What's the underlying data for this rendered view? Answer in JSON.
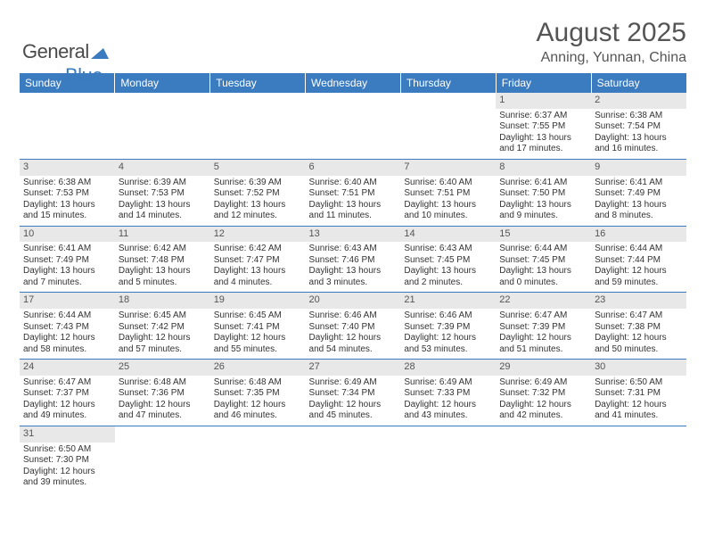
{
  "logo": {
    "text1": "General",
    "text2": "Blue"
  },
  "header": {
    "title": "August 2025",
    "subtitle": "Anning, Yunnan, China"
  },
  "colors": {
    "header_bg": "#3b7bbf",
    "daynum_bg": "#e8e8e8",
    "border": "#3b7bbf"
  },
  "weekdays": [
    "Sunday",
    "Monday",
    "Tuesday",
    "Wednesday",
    "Thursday",
    "Friday",
    "Saturday"
  ],
  "weeks": [
    [
      {
        "n": "",
        "sr": "",
        "ss": "",
        "dl": ""
      },
      {
        "n": "",
        "sr": "",
        "ss": "",
        "dl": ""
      },
      {
        "n": "",
        "sr": "",
        "ss": "",
        "dl": ""
      },
      {
        "n": "",
        "sr": "",
        "ss": "",
        "dl": ""
      },
      {
        "n": "",
        "sr": "",
        "ss": "",
        "dl": ""
      },
      {
        "n": "1",
        "sr": "Sunrise: 6:37 AM",
        "ss": "Sunset: 7:55 PM",
        "dl": "Daylight: 13 hours and 17 minutes."
      },
      {
        "n": "2",
        "sr": "Sunrise: 6:38 AM",
        "ss": "Sunset: 7:54 PM",
        "dl": "Daylight: 13 hours and 16 minutes."
      }
    ],
    [
      {
        "n": "3",
        "sr": "Sunrise: 6:38 AM",
        "ss": "Sunset: 7:53 PM",
        "dl": "Daylight: 13 hours and 15 minutes."
      },
      {
        "n": "4",
        "sr": "Sunrise: 6:39 AM",
        "ss": "Sunset: 7:53 PM",
        "dl": "Daylight: 13 hours and 14 minutes."
      },
      {
        "n": "5",
        "sr": "Sunrise: 6:39 AM",
        "ss": "Sunset: 7:52 PM",
        "dl": "Daylight: 13 hours and 12 minutes."
      },
      {
        "n": "6",
        "sr": "Sunrise: 6:40 AM",
        "ss": "Sunset: 7:51 PM",
        "dl": "Daylight: 13 hours and 11 minutes."
      },
      {
        "n": "7",
        "sr": "Sunrise: 6:40 AM",
        "ss": "Sunset: 7:51 PM",
        "dl": "Daylight: 13 hours and 10 minutes."
      },
      {
        "n": "8",
        "sr": "Sunrise: 6:41 AM",
        "ss": "Sunset: 7:50 PM",
        "dl": "Daylight: 13 hours and 9 minutes."
      },
      {
        "n": "9",
        "sr": "Sunrise: 6:41 AM",
        "ss": "Sunset: 7:49 PM",
        "dl": "Daylight: 13 hours and 8 minutes."
      }
    ],
    [
      {
        "n": "10",
        "sr": "Sunrise: 6:41 AM",
        "ss": "Sunset: 7:49 PM",
        "dl": "Daylight: 13 hours and 7 minutes."
      },
      {
        "n": "11",
        "sr": "Sunrise: 6:42 AM",
        "ss": "Sunset: 7:48 PM",
        "dl": "Daylight: 13 hours and 5 minutes."
      },
      {
        "n": "12",
        "sr": "Sunrise: 6:42 AM",
        "ss": "Sunset: 7:47 PM",
        "dl": "Daylight: 13 hours and 4 minutes."
      },
      {
        "n": "13",
        "sr": "Sunrise: 6:43 AM",
        "ss": "Sunset: 7:46 PM",
        "dl": "Daylight: 13 hours and 3 minutes."
      },
      {
        "n": "14",
        "sr": "Sunrise: 6:43 AM",
        "ss": "Sunset: 7:45 PM",
        "dl": "Daylight: 13 hours and 2 minutes."
      },
      {
        "n": "15",
        "sr": "Sunrise: 6:44 AM",
        "ss": "Sunset: 7:45 PM",
        "dl": "Daylight: 13 hours and 0 minutes."
      },
      {
        "n": "16",
        "sr": "Sunrise: 6:44 AM",
        "ss": "Sunset: 7:44 PM",
        "dl": "Daylight: 12 hours and 59 minutes."
      }
    ],
    [
      {
        "n": "17",
        "sr": "Sunrise: 6:44 AM",
        "ss": "Sunset: 7:43 PM",
        "dl": "Daylight: 12 hours and 58 minutes."
      },
      {
        "n": "18",
        "sr": "Sunrise: 6:45 AM",
        "ss": "Sunset: 7:42 PM",
        "dl": "Daylight: 12 hours and 57 minutes."
      },
      {
        "n": "19",
        "sr": "Sunrise: 6:45 AM",
        "ss": "Sunset: 7:41 PM",
        "dl": "Daylight: 12 hours and 55 minutes."
      },
      {
        "n": "20",
        "sr": "Sunrise: 6:46 AM",
        "ss": "Sunset: 7:40 PM",
        "dl": "Daylight: 12 hours and 54 minutes."
      },
      {
        "n": "21",
        "sr": "Sunrise: 6:46 AM",
        "ss": "Sunset: 7:39 PM",
        "dl": "Daylight: 12 hours and 53 minutes."
      },
      {
        "n": "22",
        "sr": "Sunrise: 6:47 AM",
        "ss": "Sunset: 7:39 PM",
        "dl": "Daylight: 12 hours and 51 minutes."
      },
      {
        "n": "23",
        "sr": "Sunrise: 6:47 AM",
        "ss": "Sunset: 7:38 PM",
        "dl": "Daylight: 12 hours and 50 minutes."
      }
    ],
    [
      {
        "n": "24",
        "sr": "Sunrise: 6:47 AM",
        "ss": "Sunset: 7:37 PM",
        "dl": "Daylight: 12 hours and 49 minutes."
      },
      {
        "n": "25",
        "sr": "Sunrise: 6:48 AM",
        "ss": "Sunset: 7:36 PM",
        "dl": "Daylight: 12 hours and 47 minutes."
      },
      {
        "n": "26",
        "sr": "Sunrise: 6:48 AM",
        "ss": "Sunset: 7:35 PM",
        "dl": "Daylight: 12 hours and 46 minutes."
      },
      {
        "n": "27",
        "sr": "Sunrise: 6:49 AM",
        "ss": "Sunset: 7:34 PM",
        "dl": "Daylight: 12 hours and 45 minutes."
      },
      {
        "n": "28",
        "sr": "Sunrise: 6:49 AM",
        "ss": "Sunset: 7:33 PM",
        "dl": "Daylight: 12 hours and 43 minutes."
      },
      {
        "n": "29",
        "sr": "Sunrise: 6:49 AM",
        "ss": "Sunset: 7:32 PM",
        "dl": "Daylight: 12 hours and 42 minutes."
      },
      {
        "n": "30",
        "sr": "Sunrise: 6:50 AM",
        "ss": "Sunset: 7:31 PM",
        "dl": "Daylight: 12 hours and 41 minutes."
      }
    ],
    [
      {
        "n": "31",
        "sr": "Sunrise: 6:50 AM",
        "ss": "Sunset: 7:30 PM",
        "dl": "Daylight: 12 hours and 39 minutes."
      },
      {
        "n": "",
        "sr": "",
        "ss": "",
        "dl": ""
      },
      {
        "n": "",
        "sr": "",
        "ss": "",
        "dl": ""
      },
      {
        "n": "",
        "sr": "",
        "ss": "",
        "dl": ""
      },
      {
        "n": "",
        "sr": "",
        "ss": "",
        "dl": ""
      },
      {
        "n": "",
        "sr": "",
        "ss": "",
        "dl": ""
      },
      {
        "n": "",
        "sr": "",
        "ss": "",
        "dl": ""
      }
    ]
  ]
}
